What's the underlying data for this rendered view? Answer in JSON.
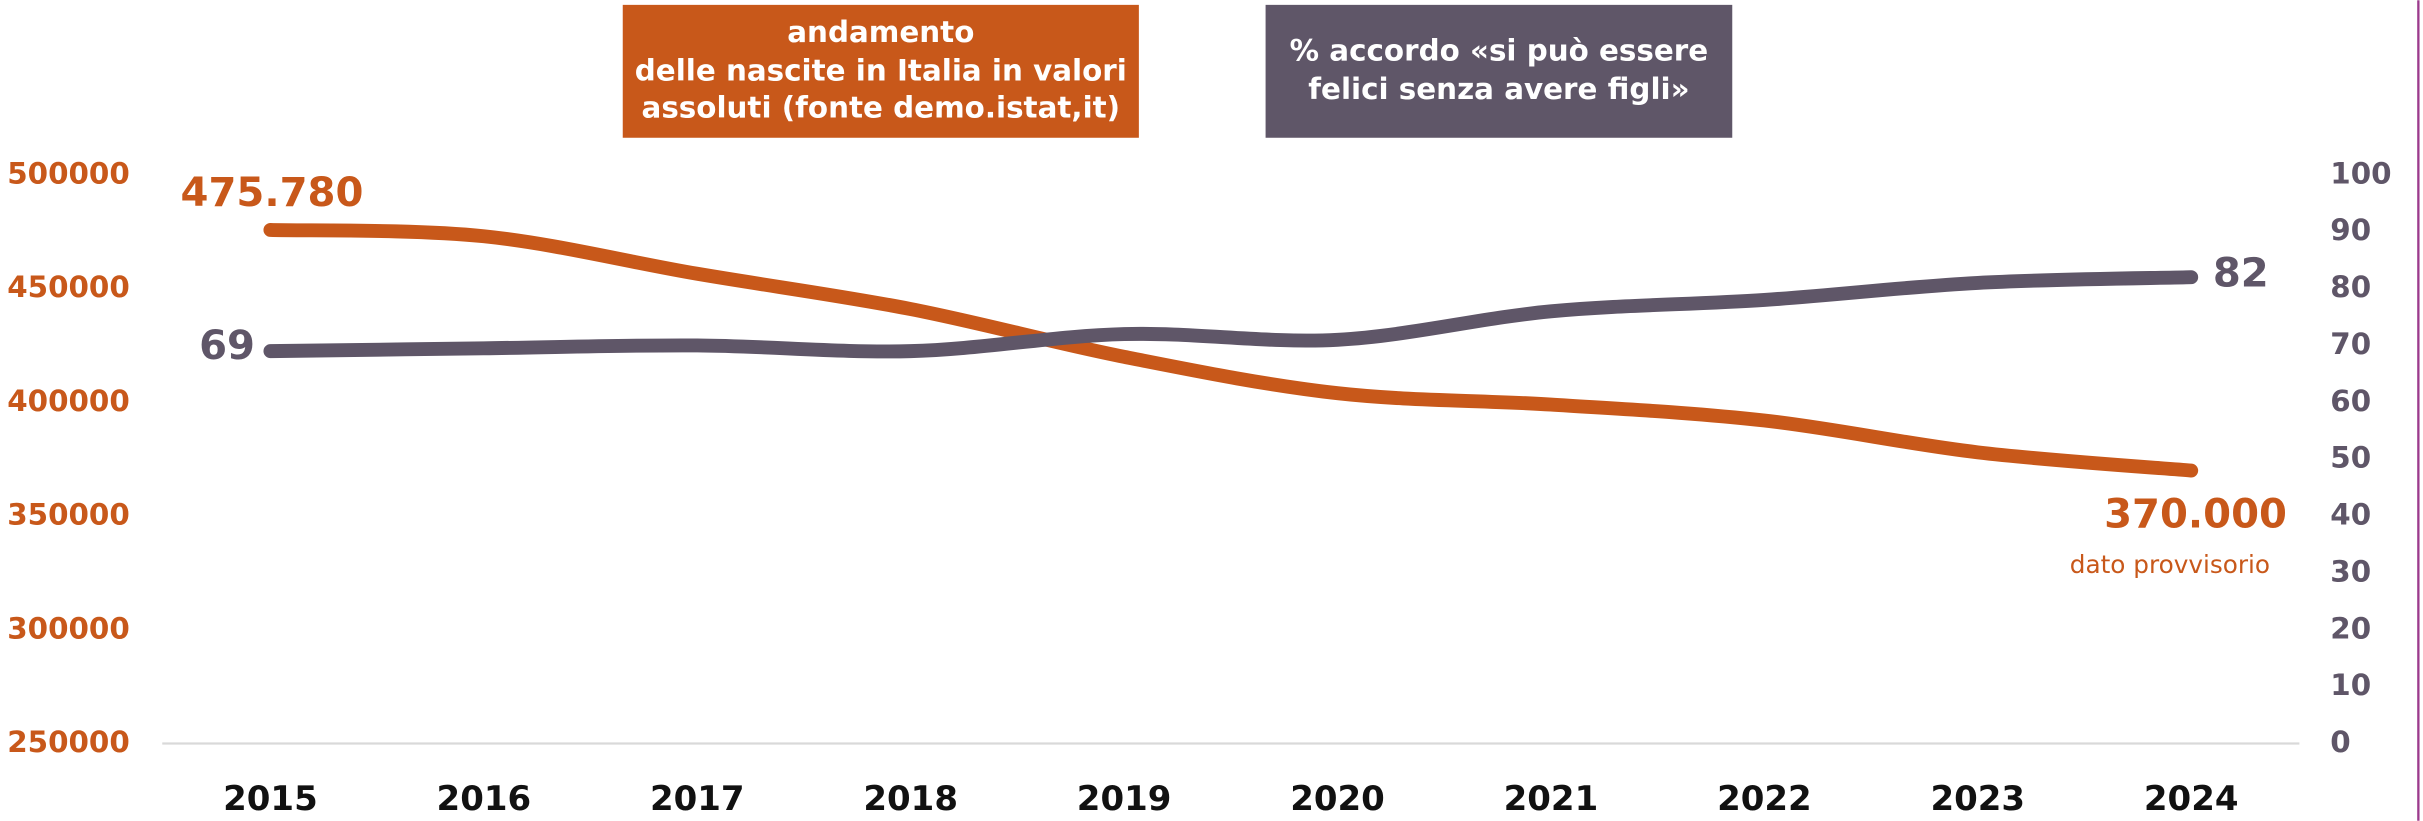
{
  "chart_data": {
    "type": "line",
    "x": [
      "2015",
      "2016",
      "2017",
      "2018",
      "2019",
      "2020",
      "2021",
      "2022",
      "2023",
      "2024"
    ],
    "series": [
      {
        "name": "andamento\ndelle nascite in Italia in valori\nassoluti (fonte demo.istat,it)",
        "color": "#c8581a",
        "values": [
          475780,
          473000,
          456500,
          441000,
          420000,
          404000,
          399000,
          392000,
          378000,
          370000
        ],
        "value_labels": [
          "475.780",
          null,
          null,
          null,
          null,
          null,
          null,
          null,
          null,
          "370.000"
        ]
      },
      {
        "name": "% accordo «si può essere\nfelici senza avere figli»",
        "color": "#5f5668",
        "axis": "y2",
        "values": [
          69,
          69.5,
          70,
          69,
          72,
          71,
          76,
          78,
          81,
          82
        ],
        "value_labels": [
          "69",
          null,
          null,
          null,
          null,
          null,
          null,
          null,
          null,
          "82"
        ]
      }
    ],
    "ylim": [
      250000,
      500000
    ],
    "yticks": [
      250000,
      300000,
      350000,
      400000,
      450000,
      500000
    ],
    "y2lim": [
      0,
      100
    ],
    "y2ticks": [
      0,
      10,
      20,
      30,
      40,
      50,
      60,
      70,
      80,
      90,
      100
    ],
    "annotations": [
      "dato provvisorio"
    ]
  }
}
